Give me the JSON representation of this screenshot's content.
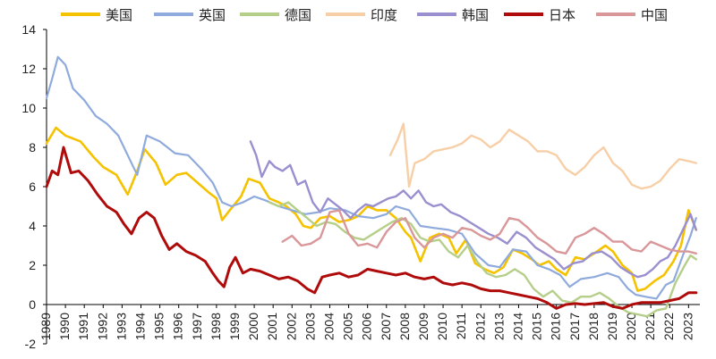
{
  "chart_data": {
    "type": "line",
    "title": "",
    "xlabel": "",
    "ylabel": "",
    "ylim": [
      -2,
      14
    ],
    "yticks": [
      -2,
      0,
      2,
      4,
      6,
      8,
      10,
      12,
      14
    ],
    "xlim": [
      1989,
      2023.6
    ],
    "xticks": [
      "1989",
      "1990",
      "1991",
      "1992",
      "1993",
      "1994",
      "1995",
      "1996",
      "1997",
      "1998",
      "1999",
      "2000",
      "2001",
      "2002",
      "2003",
      "2004",
      "2005",
      "2006",
      "2007",
      "2008",
      "2009",
      "2010",
      "2011",
      "2012",
      "2013",
      "2014",
      "2015",
      "2016",
      "2017",
      "2018",
      "2019",
      "2020",
      "2021",
      "2022",
      "2023"
    ],
    "xtick_positions": [
      1989,
      1990,
      1991,
      1992,
      1993,
      1994,
      1995,
      1996,
      1997,
      1998,
      1999,
      2000,
      2001,
      2002,
      2003,
      2004,
      2005,
      2006,
      2007,
      2008,
      2009,
      2010,
      2011,
      2012,
      2013,
      2014,
      2015,
      2016,
      2017,
      2018,
      2019,
      2020,
      2021,
      2022,
      2023
    ],
    "grid": false,
    "legend_position": "top",
    "series": [
      {
        "name": "美国",
        "color": "#F5C200",
        "stroke_width": 2.6,
        "x": [
          1989,
          1989.5,
          1990,
          1990.8,
          1991.5,
          1992,
          1992.7,
          1993.3,
          1993.8,
          1994.2,
          1994.8,
          1995.3,
          1995.9,
          1996.4,
          1997,
          1997.6,
          1998,
          1998.3,
          1998.7,
          1999.3,
          1999.7,
          2000.3,
          2000.8,
          2001.3,
          2001.7,
          2002.2,
          2002.6,
          2003,
          2003.5,
          2004,
          2004.5,
          2005,
          2005.5,
          2006,
          2006.5,
          2007,
          2007.5,
          2008,
          2008.3,
          2008.8,
          2009.3,
          2009.8,
          2010.3,
          2010.7,
          2011.2,
          2011.7,
          2012.2,
          2012.7,
          2013.2,
          2013.7,
          2014.2,
          2014.7,
          2015.1,
          2015.6,
          2016,
          2016.5,
          2017,
          2017.5,
          2018,
          2018.6,
          2019,
          2019.5,
          2020,
          2020.3,
          2020.7,
          2021.2,
          2021.7,
          2022.2,
          2022.6,
          2023,
          2023.4
        ],
        "y": [
          8.2,
          9.0,
          8.6,
          8.3,
          7.5,
          7.0,
          6.6,
          5.6,
          6.8,
          7.9,
          7.2,
          6.1,
          6.6,
          6.7,
          6.2,
          5.7,
          5.4,
          4.3,
          4.8,
          5.5,
          6.4,
          6.2,
          5.4,
          5.2,
          5.0,
          4.6,
          4.0,
          3.9,
          4.4,
          4.5,
          4.2,
          4.3,
          4.5,
          5.0,
          4.8,
          4.8,
          4.4,
          3.7,
          3.4,
          2.2,
          3.4,
          3.6,
          3.4,
          2.6,
          3.3,
          2.1,
          1.8,
          1.6,
          1.9,
          2.8,
          2.6,
          2.3,
          2.0,
          2.2,
          1.8,
          1.5,
          2.4,
          2.3,
          2.6,
          3.0,
          2.7,
          2.0,
          1.6,
          0.7,
          0.8,
          1.2,
          1.5,
          2.2,
          3.0,
          4.8,
          3.8
        ]
      },
      {
        "name": "英国",
        "color": "#8FAADC",
        "stroke_width": 2.2,
        "x": [
          1989,
          1989.3,
          1989.6,
          1990,
          1990.4,
          1991,
          1991.6,
          1992.2,
          1992.8,
          1993.3,
          1993.8,
          1994.3,
          1995,
          1995.8,
          1996.5,
          1997.2,
          1997.8,
          1998.3,
          1998.8,
          1999.4,
          2000,
          2000.6,
          2001.3,
          2002,
          2002.7,
          2003.4,
          2004,
          2004.8,
          2005.5,
          2006.3,
          2007,
          2007.5,
          2008.2,
          2008.8,
          2009.5,
          2010.3,
          2011,
          2011.7,
          2012.4,
          2013,
          2013.7,
          2014.4,
          2015,
          2015.6,
          2016.2,
          2016.7,
          2017.3,
          2018,
          2018.7,
          2019.3,
          2019.8,
          2020.2,
          2020.7,
          2021.3,
          2021.8,
          2022.2,
          2022.7,
          2023.1,
          2023.4
        ],
        "y": [
          10.5,
          11.5,
          12.6,
          12.2,
          11.0,
          10.4,
          9.6,
          9.2,
          8.6,
          7.6,
          6.6,
          8.6,
          8.3,
          7.7,
          7.6,
          6.9,
          6.2,
          5.2,
          5.0,
          5.2,
          5.5,
          5.3,
          5.0,
          4.8,
          4.6,
          4.7,
          4.9,
          4.8,
          4.5,
          4.4,
          4.6,
          5.0,
          4.8,
          4.0,
          3.9,
          3.8,
          3.6,
          2.6,
          2.0,
          1.9,
          2.8,
          2.7,
          2.0,
          1.8,
          1.5,
          0.9,
          1.3,
          1.4,
          1.6,
          1.4,
          0.8,
          0.5,
          0.4,
          0.3,
          1.0,
          1.2,
          2.5,
          3.5,
          4.4
        ]
      },
      {
        "name": "德国",
        "color": "#B5CF8A",
        "stroke_width": 2.4,
        "x": [
          2000.8,
          2001.3,
          2001.8,
          2002.3,
          2002.8,
          2003.3,
          2003.8,
          2004.3,
          2004.8,
          2005.3,
          2005.8,
          2006.3,
          2006.8,
          2007.3,
          2007.8,
          2008.3,
          2008.8,
          2009.3,
          2009.8,
          2010.3,
          2010.8,
          2011.3,
          2011.8,
          2012.3,
          2012.8,
          2013.3,
          2013.8,
          2014.3,
          2014.8,
          2015.3,
          2015.8,
          2016.3,
          2016.8,
          2017.3,
          2017.8,
          2018.3,
          2018.8,
          2019.3,
          2019.8,
          2020.3,
          2020.8,
          2021.3,
          2021.8,
          2022.3,
          2022.8,
          2023.1,
          2023.4
        ],
        "y": [
          5.2,
          5.0,
          5.2,
          4.8,
          4.4,
          4.0,
          4.2,
          4.1,
          3.7,
          3.4,
          3.3,
          3.6,
          3.9,
          4.2,
          4.4,
          4.1,
          3.4,
          3.2,
          3.3,
          2.7,
          2.4,
          3.0,
          2.2,
          1.6,
          1.4,
          1.5,
          1.8,
          1.5,
          0.8,
          0.4,
          0.7,
          0.2,
          0.1,
          0.4,
          0.4,
          0.6,
          0.3,
          -0.1,
          -0.4,
          -0.5,
          -0.6,
          -0.3,
          -0.2,
          1.1,
          2.0,
          2.5,
          2.3
        ]
      },
      {
        "name": "印度",
        "color": "#F7CFA6",
        "stroke_width": 2.4,
        "x": [
          2007.2,
          2007.6,
          2007.9,
          2008.2,
          2008.5,
          2009,
          2009.5,
          2010,
          2010.5,
          2011,
          2011.5,
          2012,
          2012.5,
          2013,
          2013.5,
          2014,
          2014.5,
          2015,
          2015.5,
          2016,
          2016.5,
          2017,
          2017.5,
          2018,
          2018.5,
          2019,
          2019.5,
          2020,
          2020.5,
          2021,
          2021.5,
          2022,
          2022.5,
          2023,
          2023.4
        ],
        "y": [
          7.6,
          8.4,
          9.2,
          6.0,
          7.2,
          7.4,
          7.8,
          7.9,
          8.0,
          8.2,
          8.6,
          8.4,
          8.0,
          8.3,
          8.9,
          8.6,
          8.3,
          7.8,
          7.8,
          7.6,
          6.9,
          6.6,
          7.0,
          7.6,
          8.0,
          7.2,
          6.8,
          6.1,
          5.9,
          6.0,
          6.3,
          6.9,
          7.4,
          7.3,
          7.2
        ]
      },
      {
        "name": "韩国",
        "color": "#9A8FCF",
        "stroke_width": 2.4,
        "x": [
          1999.8,
          2000.1,
          2000.4,
          2000.8,
          2001.1,
          2001.5,
          2001.9,
          2002.3,
          2002.7,
          2003.1,
          2003.5,
          2003.9,
          2004.3,
          2004.7,
          2005.1,
          2005.5,
          2005.9,
          2006.3,
          2006.7,
          2007.1,
          2007.5,
          2007.9,
          2008.3,
          2008.7,
          2009.1,
          2009.5,
          2009.9,
          2010.4,
          2010.9,
          2011.4,
          2011.9,
          2012.4,
          2012.9,
          2013.4,
          2013.9,
          2014.4,
          2014.9,
          2015.4,
          2015.9,
          2016.4,
          2016.9,
          2017.4,
          2017.9,
          2018.4,
          2018.9,
          2019.4,
          2019.9,
          2020.3,
          2020.7,
          2021.1,
          2021.5,
          2021.9,
          2022.3,
          2022.7,
          2023.1,
          2023.4
        ],
        "y": [
          8.3,
          7.6,
          6.5,
          7.3,
          7.0,
          6.8,
          7.1,
          6.1,
          6.3,
          5.2,
          4.7,
          5.4,
          5.1,
          4.8,
          4.4,
          4.8,
          5.1,
          5.0,
          5.2,
          5.4,
          5.5,
          5.8,
          5.4,
          5.8,
          5.2,
          5.0,
          5.1,
          4.7,
          4.5,
          4.2,
          3.9,
          3.6,
          3.4,
          3.1,
          3.7,
          3.4,
          2.9,
          2.6,
          2.3,
          1.8,
          2.1,
          2.2,
          2.6,
          2.7,
          2.4,
          1.9,
          1.6,
          1.4,
          1.5,
          1.8,
          2.2,
          2.4,
          3.0,
          3.8,
          4.6,
          3.8
        ]
      },
      {
        "name": "日本",
        "color": "#B00B0B",
        "stroke_width": 3.0,
        "x": [
          1989,
          1989.3,
          1989.6,
          1989.9,
          1990.3,
          1990.7,
          1991.2,
          1991.7,
          1992.2,
          1992.7,
          1993.1,
          1993.5,
          1993.9,
          1994.3,
          1994.7,
          1995.1,
          1995.5,
          1995.9,
          1996.4,
          1996.9,
          1997.4,
          1997.8,
          1998.1,
          1998.4,
          1998.7,
          1999,
          1999.4,
          1999.8,
          2000.3,
          2000.8,
          2001.3,
          2001.8,
          2002.3,
          2002.8,
          2003.2,
          2003.6,
          2004,
          2004.5,
          2005,
          2005.5,
          2006,
          2006.5,
          2007,
          2007.5,
          2008,
          2008.5,
          2009,
          2009.5,
          2010,
          2010.5,
          2011,
          2011.5,
          2012,
          2012.5,
          2013,
          2013.5,
          2014,
          2014.5,
          2015,
          2015.5,
          2016,
          2016.5,
          2017,
          2017.5,
          2018,
          2018.5,
          2019,
          2019.5,
          2020,
          2020.5,
          2021,
          2021.5,
          2022,
          2022.5,
          2023,
          2023.4
        ],
        "y": [
          6.0,
          6.8,
          6.6,
          8.0,
          6.7,
          6.8,
          6.3,
          5.6,
          5.0,
          4.7,
          4.1,
          3.6,
          4.4,
          4.7,
          4.4,
          3.5,
          2.8,
          3.1,
          2.7,
          2.5,
          2.2,
          1.6,
          1.2,
          0.9,
          1.9,
          2.4,
          1.6,
          1.8,
          1.7,
          1.5,
          1.3,
          1.4,
          1.2,
          0.8,
          0.6,
          1.4,
          1.5,
          1.6,
          1.4,
          1.5,
          1.8,
          1.7,
          1.6,
          1.5,
          1.6,
          1.4,
          1.3,
          1.4,
          1.1,
          1.0,
          1.1,
          1.0,
          0.8,
          0.7,
          0.7,
          0.6,
          0.5,
          0.4,
          0.3,
          0.1,
          -0.2,
          0.0,
          0.05,
          0.0,
          0.05,
          0.1,
          -0.1,
          -0.2,
          0.0,
          0.1,
          0.1,
          0.1,
          0.2,
          0.3,
          0.6,
          0.6
        ]
      },
      {
        "name": "中国",
        "color": "#D9979A",
        "stroke_width": 2.4,
        "x": [
          2001.5,
          2002,
          2002.5,
          2003,
          2003.5,
          2004,
          2004.5,
          2005,
          2005.5,
          2006,
          2006.5,
          2007,
          2007.5,
          2008,
          2008.5,
          2009,
          2009.5,
          2010,
          2010.5,
          2011,
          2011.5,
          2012,
          2012.5,
          2013,
          2013.5,
          2014,
          2014.5,
          2015,
          2015.5,
          2016,
          2016.5,
          2017,
          2017.5,
          2018,
          2018.5,
          2019,
          2019.5,
          2020,
          2020.5,
          2021,
          2021.5,
          2022,
          2022.5,
          2023,
          2023.4
        ],
        "y": [
          3.2,
          3.5,
          3.0,
          3.1,
          3.4,
          4.7,
          4.8,
          3.6,
          3.0,
          3.1,
          2.9,
          3.7,
          4.2,
          4.4,
          3.4,
          2.9,
          3.4,
          3.6,
          3.4,
          3.9,
          3.8,
          3.5,
          3.3,
          3.6,
          4.4,
          4.3,
          3.9,
          3.4,
          3.1,
          2.7,
          2.6,
          3.4,
          3.6,
          3.9,
          3.6,
          3.2,
          3.2,
          2.8,
          2.7,
          3.2,
          3.0,
          2.8,
          2.7,
          2.7,
          2.6
        ]
      }
    ]
  },
  "colors": {
    "axis": "#000000",
    "background": "#ffffff"
  }
}
